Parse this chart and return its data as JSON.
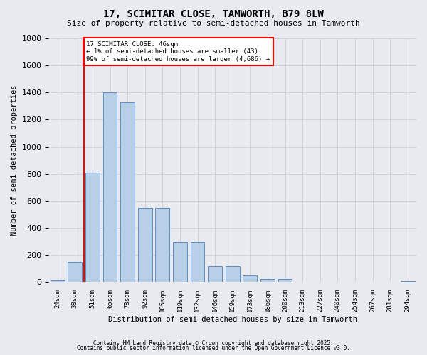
{
  "title": "17, SCIMITAR CLOSE, TAMWORTH, B79 8LW",
  "subtitle": "Size of property relative to semi-detached houses in Tamworth",
  "xlabel": "Distribution of semi-detached houses by size in Tamworth",
  "ylabel": "Number of semi-detached properties",
  "tick_labels": [
    "24sqm",
    "38sqm",
    "51sqm",
    "65sqm",
    "78sqm",
    "92sqm",
    "105sqm",
    "119sqm",
    "132sqm",
    "146sqm",
    "159sqm",
    "173sqm",
    "186sqm",
    "200sqm",
    "213sqm",
    "227sqm",
    "240sqm",
    "254sqm",
    "267sqm",
    "281sqm",
    "294sqm"
  ],
  "values": [
    15,
    150,
    810,
    1400,
    1330,
    550,
    550,
    295,
    295,
    120,
    120,
    50,
    25,
    25,
    5,
    5,
    5,
    0,
    0,
    0,
    10
  ],
  "bar_color": "#b8cfe8",
  "bar_edge_color": "#5b8ec4",
  "grid_color": "#d0d0d0",
  "background_color": "#e8eaf0",
  "property_bar_index": 1,
  "property_line_color": "red",
  "annotation_text": "17 SCIMITAR CLOSE: 46sqm\n← 1% of semi-detached houses are smaller (43)\n99% of semi-detached houses are larger (4,686) →",
  "annotation_box_color": "white",
  "annotation_box_edge_color": "red",
  "ylim": [
    0,
    1800
  ],
  "footer1": "Contains HM Land Registry data © Crown copyright and database right 2025.",
  "footer2": "Contains public sector information licensed under the Open Government Licence v3.0."
}
